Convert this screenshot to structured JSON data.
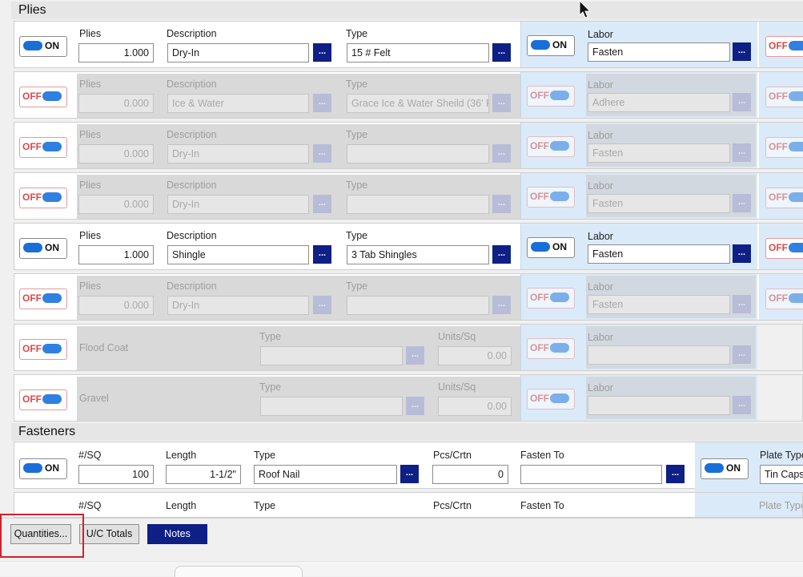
{
  "plies_section": {
    "title": "Plies"
  },
  "fasteners_section": {
    "title": "Fasteners"
  },
  "toggle_text": {
    "on": "ON",
    "off": "OFF"
  },
  "labels": {
    "plies": "Plies",
    "description": "Description",
    "type": "Type",
    "labor": "Labor",
    "units_sq": "Units/Sq",
    "per_sq": "#/SQ",
    "length": "Length",
    "pcs_crtn": "Pcs/Crtn",
    "fasten_to": "Fasten To",
    "plate_type": "Plate Type",
    "dots": "..."
  },
  "ply_rows": [
    {
      "state": "on",
      "plies": "1.000",
      "description": "Dry-In",
      "type": "15 # Felt",
      "labor": "Fasten"
    },
    {
      "state": "off",
      "plies": "0.000",
      "description": "Ice & Water",
      "type": "Grace Ice & Water Sheild (36' F",
      "labor": "Adhere"
    },
    {
      "state": "off",
      "plies": "0.000",
      "description": "Dry-In",
      "type": "",
      "labor": "Fasten"
    },
    {
      "state": "off",
      "plies": "0.000",
      "description": "Dry-In",
      "type": "",
      "labor": "Fasten"
    },
    {
      "state": "on",
      "plies": "1.000",
      "description": "Shingle",
      "type": "3 Tab Shingles",
      "labor": "Fasten"
    },
    {
      "state": "off",
      "plies": "0.000",
      "description": "Dry-In",
      "type": "",
      "labor": "Fasten"
    }
  ],
  "coat_rows": [
    {
      "state": "off",
      "name": "Flood Coat",
      "type": "",
      "units": "0.00",
      "labor": ""
    },
    {
      "state": "off",
      "name": "Gravel",
      "type": "",
      "units": "0.00",
      "labor": ""
    }
  ],
  "fastener_rows": [
    {
      "state": "on",
      "per_sq": "100",
      "length": "1-1/2\"",
      "type": "Roof Nail",
      "pcs_crtn": "0",
      "fasten_to": "",
      "plate_type": "Tin Caps"
    }
  ],
  "footer": {
    "quantities_label": "Quantities...",
    "uc_totals_label": "U/C Totals",
    "notes_label": "Notes"
  }
}
